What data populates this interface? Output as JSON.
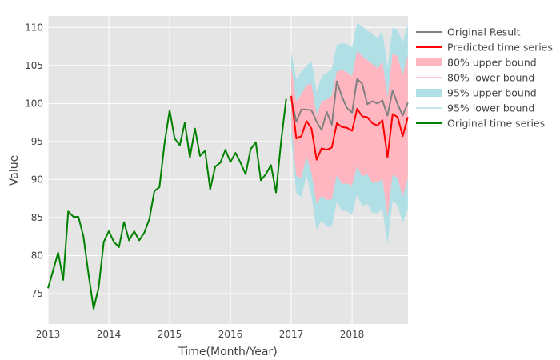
{
  "chart_data": {
    "type": "line",
    "title": "",
    "xlabel": "Time(Month/Year)",
    "ylabel": "Value",
    "xlim": [
      2013.0,
      2018.92
    ],
    "ylim": [
      71,
      111.5
    ],
    "x_ticks": [
      {
        "value": 2013,
        "label": "2013"
      },
      {
        "value": 2014,
        "label": "2014"
      },
      {
        "value": 2015,
        "label": "2015"
      },
      {
        "value": 2016,
        "label": "2016"
      },
      {
        "value": 2017,
        "label": "2017"
      },
      {
        "value": 2018,
        "label": "2018"
      }
    ],
    "y_ticks": [
      {
        "value": 75,
        "label": "75"
      },
      {
        "value": 80,
        "label": "80"
      },
      {
        "value": 85,
        "label": "85"
      },
      {
        "value": 90,
        "label": "90"
      },
      {
        "value": 95,
        "label": "95"
      },
      {
        "value": 100,
        "label": "100"
      },
      {
        "value": 105,
        "label": "105"
      },
      {
        "value": 110,
        "label": "110"
      }
    ],
    "grid": true,
    "legend_position": "right",
    "legend": [
      {
        "name": "Original Result",
        "color": "#808080",
        "kind": "line"
      },
      {
        "name": "Predicted time series",
        "color": "#ff0000",
        "kind": "line"
      },
      {
        "name": "80% upper bound",
        "color": "#ffb6c1",
        "kind": "band"
      },
      {
        "name": "80% lower bound",
        "color": "#ffb6c1",
        "kind": "thin"
      },
      {
        "name": "95% upper bound",
        "color": "#b0e0e6",
        "kind": "band"
      },
      {
        "name": "95% lower bound",
        "color": "#b0e0e6",
        "kind": "thin"
      },
      {
        "name": "Original time series",
        "color": "#008000",
        "kind": "line"
      }
    ],
    "original_time_series": {
      "color": "#008000",
      "x": [
        2013.0,
        2013.083,
        2013.167,
        2013.25,
        2013.333,
        2013.417,
        2013.5,
        2013.583,
        2013.667,
        2013.75,
        2013.833,
        2013.917,
        2014.0,
        2014.083,
        2014.167,
        2014.25,
        2014.333,
        2014.417,
        2014.5,
        2014.583,
        2014.667,
        2014.75,
        2014.833,
        2014.917,
        2015.0,
        2015.083,
        2015.167,
        2015.25,
        2015.333,
        2015.417,
        2015.5,
        2015.583,
        2015.667,
        2015.75,
        2015.833,
        2015.917,
        2016.0,
        2016.083,
        2016.167,
        2016.25,
        2016.333,
        2016.417,
        2016.5,
        2016.583,
        2016.667,
        2016.75,
        2016.833,
        2016.917
      ],
      "y": [
        75.7,
        78.0,
        80.4,
        76.8,
        85.8,
        85.1,
        85.1,
        82.5,
        77.5,
        73.0,
        75.8,
        81.8,
        83.2,
        81.8,
        81.1,
        84.4,
        82.0,
        83.2,
        82.0,
        83.0,
        84.8,
        88.5,
        89.0,
        94.8,
        99.1,
        95.4,
        94.5,
        97.5,
        92.9,
        96.7,
        93.1,
        93.8,
        88.7,
        91.7,
        92.2,
        93.9,
        92.3,
        93.5,
        92.2,
        90.7,
        94.0,
        94.9,
        89.9,
        90.7,
        91.9,
        88.3,
        95.0,
        100.6
      ]
    },
    "forecast_x": [
      2017.0,
      2017.083,
      2017.167,
      2017.25,
      2017.333,
      2017.417,
      2017.5,
      2017.583,
      2017.667,
      2017.75,
      2017.833,
      2017.917,
      2018.0,
      2018.083,
      2018.167,
      2018.25,
      2018.333,
      2018.417,
      2018.5,
      2018.583,
      2018.667,
      2018.75,
      2018.833,
      2018.917
    ],
    "original_result": {
      "color": "#808080",
      "y": [
        100.7,
        97.6,
        99.2,
        99.2,
        99.1,
        97.6,
        96.5,
        98.9,
        97.2,
        102.9,
        100.9,
        99.4,
        98.8,
        103.2,
        102.6,
        99.9,
        100.3,
        100.0,
        100.4,
        98.4,
        101.7,
        99.9,
        98.4,
        100.1
      ]
    },
    "predicted_time_series": {
      "color": "#ff0000",
      "y": [
        101.0,
        95.4,
        95.7,
        97.7,
        96.7,
        92.6,
        94.1,
        93.9,
        94.2,
        97.4,
        96.9,
        96.8,
        96.4,
        99.3,
        98.3,
        98.2,
        97.4,
        97.1,
        97.8,
        92.9,
        98.6,
        98.2,
        95.7,
        98.2
      ]
    },
    "bound_80": {
      "color": "#ffb6c1",
      "upper": [
        104.8,
        100.3,
        101.2,
        102.4,
        102.6,
        98.4,
        100.3,
        100.5,
        101.0,
        104.2,
        104.4,
        104.1,
        103.6,
        106.9,
        106.2,
        105.7,
        105.2,
        104.6,
        105.5,
        100.7,
        106.6,
        106.2,
        103.7,
        106.3
      ],
      "lower": [
        97.2,
        90.5,
        90.2,
        93.0,
        90.9,
        86.8,
        87.9,
        87.3,
        87.4,
        90.6,
        89.4,
        89.5,
        89.2,
        91.7,
        90.4,
        90.7,
        89.6,
        89.6,
        90.1,
        85.1,
        90.6,
        90.2,
        87.7,
        90.1
      ]
    },
    "bound_95": {
      "color": "#b0e0e6",
      "upper": [
        106.8,
        103.2,
        104.2,
        104.9,
        105.6,
        101.5,
        103.6,
        104.0,
        104.6,
        107.7,
        107.9,
        107.8,
        107.4,
        110.6,
        110.1,
        109.6,
        109.2,
        108.6,
        109.5,
        104.8,
        110.0,
        109.7,
        108.0,
        110.4
      ],
      "lower": [
        95.2,
        88.2,
        87.7,
        90.5,
        87.8,
        83.4,
        84.6,
        83.8,
        83.8,
        87.1,
        85.9,
        85.8,
        85.4,
        88.0,
        86.5,
        86.8,
        85.6,
        85.6,
        86.1,
        81.5,
        87.2,
        86.6,
        84.3,
        86.1
      ]
    }
  }
}
